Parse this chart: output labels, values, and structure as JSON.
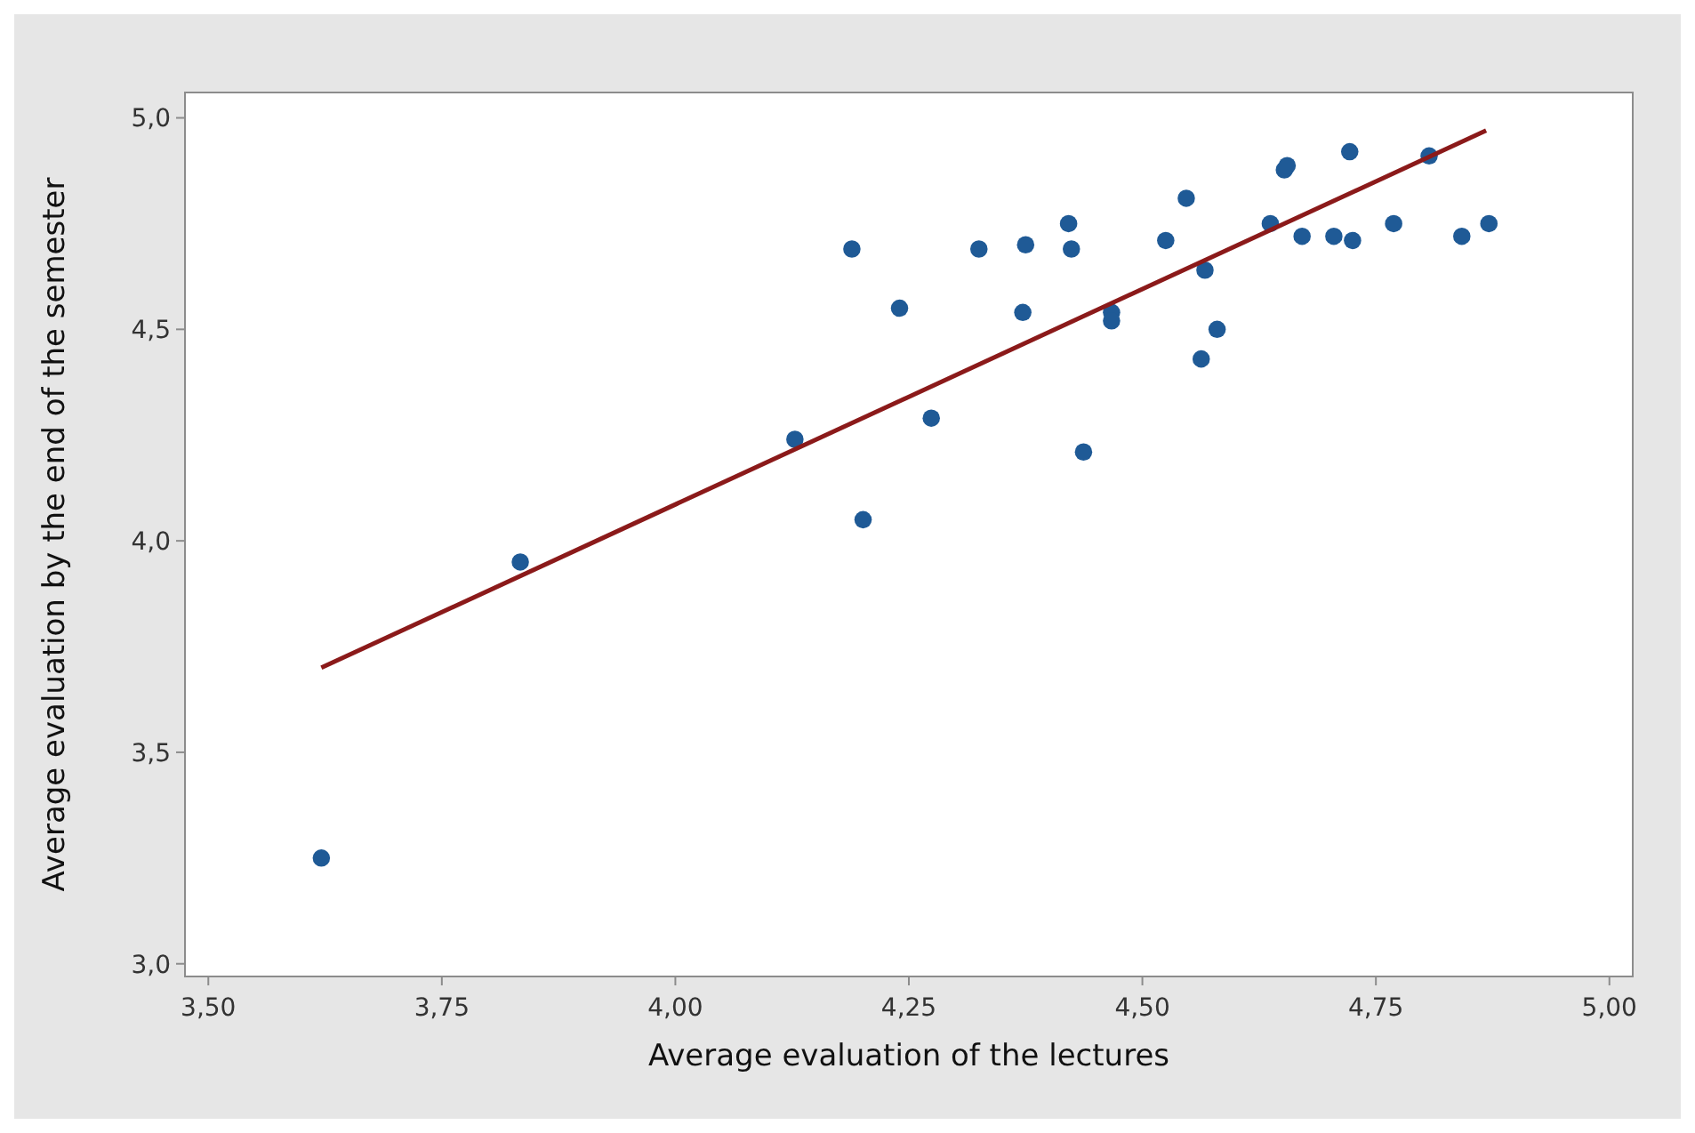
{
  "chart_data": {
    "type": "scatter",
    "xlabel": "Average evaluation of the lectures",
    "ylabel": "Average evaluation by the end of the semester",
    "xlim": [
      3.475,
      5.025
    ],
    "ylim": [
      2.97,
      5.06
    ],
    "xticks": [
      {
        "value": 3.5,
        "label": "3,50"
      },
      {
        "value": 3.75,
        "label": "3,75"
      },
      {
        "value": 4.0,
        "label": "4,00"
      },
      {
        "value": 4.25,
        "label": "4,25"
      },
      {
        "value": 4.5,
        "label": "4,50"
      },
      {
        "value": 4.75,
        "label": "4,75"
      },
      {
        "value": 5.0,
        "label": "5,00"
      }
    ],
    "yticks": [
      {
        "value": 3.0,
        "label": "3,0"
      },
      {
        "value": 3.5,
        "label": "3,5"
      },
      {
        "value": 4.0,
        "label": "4,0"
      },
      {
        "value": 4.5,
        "label": "4,5"
      },
      {
        "value": 5.0,
        "label": "5,0"
      }
    ],
    "grid": false,
    "marker": "circle",
    "series": [
      {
        "color": "#1f5a96",
        "x": [
          3.621,
          3.834,
          4.128,
          4.189,
          4.24,
          4.201,
          4.274,
          4.325,
          4.375,
          4.372,
          4.421,
          4.424,
          4.437,
          4.467,
          4.467,
          4.525,
          4.547,
          4.567,
          4.563,
          4.58,
          4.637,
          4.652,
          4.655,
          4.671,
          4.705,
          4.725,
          4.722,
          4.769,
          4.807,
          4.842,
          4.871
        ],
        "values": [
          3.25,
          3.95,
          4.24,
          4.69,
          4.55,
          4.05,
          4.29,
          4.69,
          4.7,
          4.54,
          4.75,
          4.69,
          4.21,
          4.54,
          4.52,
          4.71,
          4.81,
          4.64,
          4.43,
          4.5,
          4.75,
          4.877,
          4.887,
          4.72,
          4.72,
          4.71,
          4.92,
          4.75,
          4.91,
          4.72,
          4.75
        ]
      },
      {
        "type": "line",
        "color": "#8b1a1a",
        "marker": "none",
        "x": [
          3.621,
          4.868
        ],
        "values": [
          3.7,
          4.97
        ]
      }
    ]
  }
}
